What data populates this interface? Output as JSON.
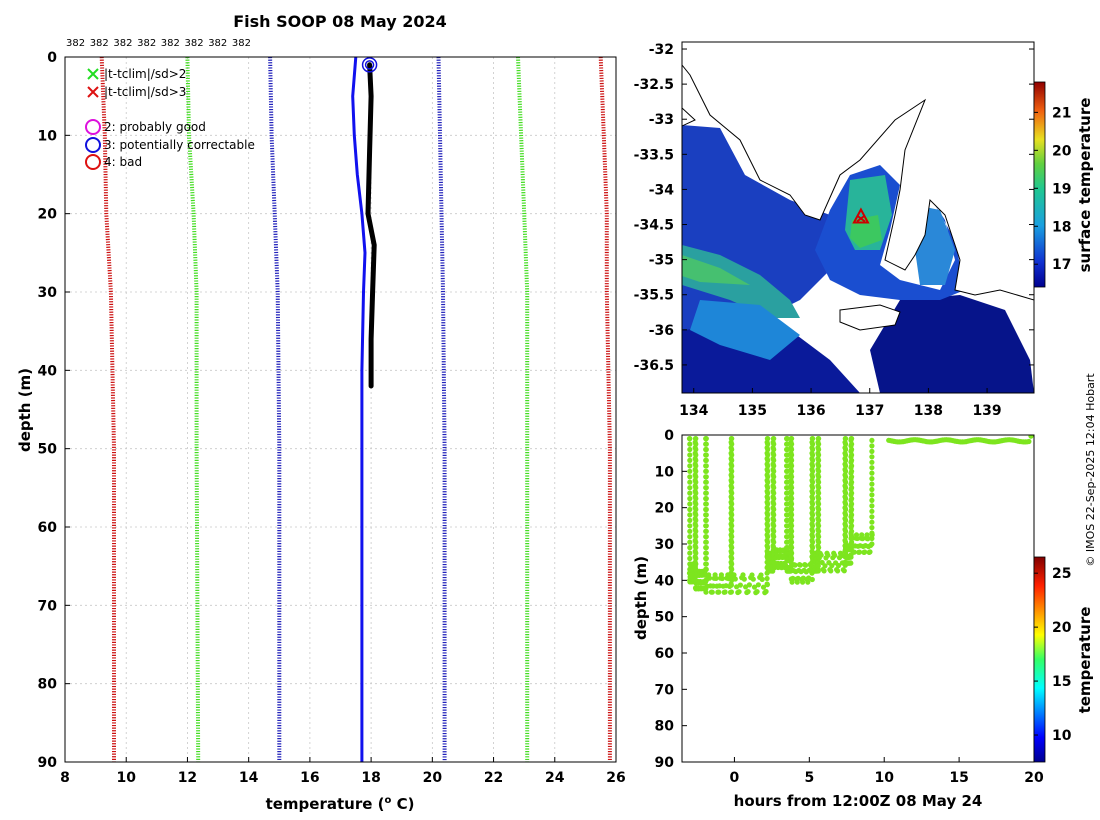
{
  "chart_data": [
    {
      "type": "line",
      "title": "Fish SOOP 08 May 2024",
      "xlabel": "temperature (",
      "xlabel_sup": "o",
      "xlabel_end": " C)",
      "ylabel": "depth (m)",
      "xlim": [
        8,
        26
      ],
      "ylim": [
        90,
        0
      ],
      "xticks": [
        "8",
        "10",
        "12",
        "14",
        "16",
        "18",
        "20",
        "22",
        "24",
        "26"
      ],
      "yticks": [
        "0",
        "10",
        "20",
        "30",
        "40",
        "50",
        "60",
        "70",
        "80",
        "90"
      ],
      "top_labels": [
        "382",
        "382",
        "382",
        "382",
        "382",
        "382",
        "382",
        "382"
      ],
      "legend": [
        {
          "marker": "x",
          "color": "#22dd22",
          "label": "|t-tclim|/sd>2"
        },
        {
          "marker": "x",
          "color": "#dd1111",
          "label": "|t-tclim|/sd>3"
        },
        {
          "marker": "o",
          "color": "#dd11dd",
          "label": "2: probably good"
        },
        {
          "marker": "o",
          "color": "#1111dd",
          "label": "3: potentially correctable"
        },
        {
          "marker": "o",
          "color": "#dd1111",
          "label": "4: bad"
        }
      ],
      "series": [
        {
          "name": "clim-3sd-low",
          "color": "#cc1111",
          "style": "dotted",
          "points": [
            [
              9.2,
              0
            ],
            [
              9.3,
              10
            ],
            [
              9.35,
              20
            ],
            [
              9.5,
              30
            ],
            [
              9.6,
              50
            ],
            [
              9.6,
              90
            ]
          ]
        },
        {
          "name": "clim-2sd-low",
          "color": "#44dd22",
          "style": "dotted",
          "points": [
            [
              12.0,
              0
            ],
            [
              12.05,
              10
            ],
            [
              12.2,
              20
            ],
            [
              12.3,
              30
            ],
            [
              12.3,
              50
            ],
            [
              12.35,
              90
            ]
          ]
        },
        {
          "name": "clim-mean-low",
          "color": "#2222bb",
          "style": "dotted",
          "points": [
            [
              14.7,
              0
            ],
            [
              14.75,
              10
            ],
            [
              14.85,
              20
            ],
            [
              14.95,
              30
            ],
            [
              15.0,
              50
            ],
            [
              15.0,
              90
            ]
          ]
        },
        {
          "name": "clim-mean-high",
          "color": "#2222bb",
          "style": "dotted",
          "points": [
            [
              20.2,
              0
            ],
            [
              20.25,
              10
            ],
            [
              20.3,
              20
            ],
            [
              20.35,
              30
            ],
            [
              20.4,
              50
            ],
            [
              20.4,
              90
            ]
          ]
        },
        {
          "name": "clim-2sd-high",
          "color": "#44dd22",
          "style": "dotted",
          "points": [
            [
              22.8,
              0
            ],
            [
              22.9,
              10
            ],
            [
              23.0,
              20
            ],
            [
              23.1,
              30
            ],
            [
              23.1,
              50
            ],
            [
              23.1,
              90
            ]
          ]
        },
        {
          "name": "clim-3sd-high",
          "color": "#cc1111",
          "style": "dotted",
          "points": [
            [
              25.5,
              0
            ],
            [
              25.6,
              10
            ],
            [
              25.7,
              20
            ],
            [
              25.7,
              30
            ],
            [
              25.8,
              50
            ],
            [
              25.8,
              90
            ]
          ]
        },
        {
          "name": "profile-blue",
          "color": "#1111ee",
          "style": "solid",
          "points": [
            [
              17.5,
              0
            ],
            [
              17.4,
              5
            ],
            [
              17.45,
              10
            ],
            [
              17.55,
              15
            ],
            [
              17.7,
              20
            ],
            [
              17.8,
              25
            ],
            [
              17.75,
              30
            ],
            [
              17.7,
              40
            ],
            [
              17.7,
              60
            ],
            [
              17.7,
              90
            ]
          ]
        },
        {
          "name": "profile-black",
          "color": "#000000",
          "style": "solid",
          "points": [
            [
              17.95,
              1
            ],
            [
              18.0,
              5
            ],
            [
              17.95,
              12
            ],
            [
              17.9,
              20
            ],
            [
              18.1,
              24
            ],
            [
              18.05,
              30
            ],
            [
              18.0,
              36
            ],
            [
              18.0,
              42
            ]
          ]
        }
      ],
      "flag_marker": {
        "x": 17.95,
        "y": 1,
        "color": "#1111dd"
      }
    },
    {
      "type": "heatmap",
      "subtitle": "surface temperature map",
      "xlim": [
        133.8,
        139.8
      ],
      "ylim": [
        -36.9,
        -31.9
      ],
      "xticks": [
        "134",
        "135",
        "136",
        "137",
        "138",
        "139"
      ],
      "yticks": [
        "-32",
        "-32.5",
        "-33",
        "-33.5",
        "-34",
        "-34.5",
        "-35",
        "-35.5",
        "-36",
        "-36.5"
      ],
      "colorbar_label": "surface temperature",
      "colorbar_ticks": [
        "17",
        "18",
        "19",
        "20",
        "21"
      ],
      "colorbar_range": [
        16.4,
        21.8
      ],
      "marker": {
        "lon": 136.85,
        "lat": -34.4
      }
    },
    {
      "type": "scatter",
      "xlabel": "hours from 12:00Z 08 May 24",
      "ylabel": "depth (m)",
      "xlim": [
        -3.5,
        20
      ],
      "ylim": [
        90,
        0
      ],
      "xticks": [
        "0",
        "5",
        "10",
        "15",
        "20"
      ],
      "yticks": [
        "0",
        "10",
        "20",
        "30",
        "40",
        "50",
        "60",
        "70",
        "80",
        "90"
      ],
      "colorbar_label": "temperature",
      "colorbar_ticks": [
        "10",
        "15",
        "20",
        "25"
      ],
      "colorbar_range": [
        7.5,
        26.5
      ],
      "point_color": "#7de51f"
    }
  ],
  "credit": "© IMOS 22-Sep-2025 12:04 Hobart"
}
